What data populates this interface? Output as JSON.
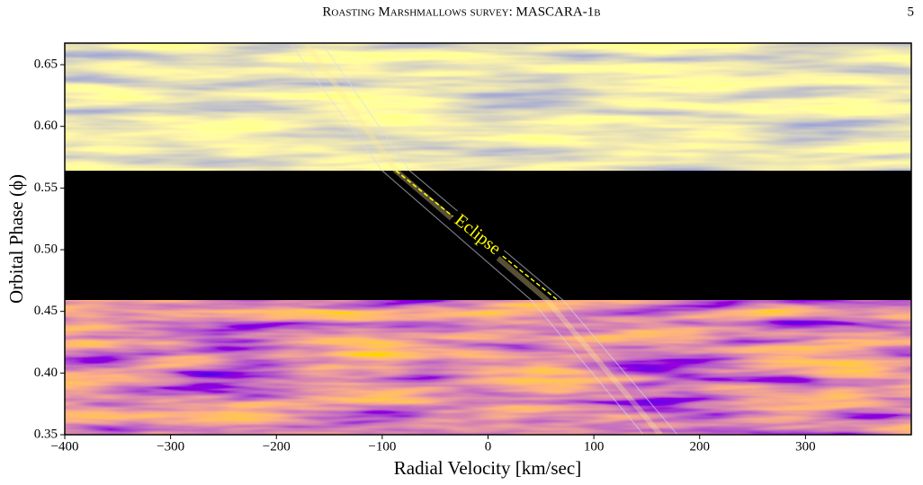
{
  "header": {
    "running_title": "Roasting Marshmallows survey: MASCARA-1b",
    "page_number": "5"
  },
  "chart_data": {
    "type": "phase-map",
    "xlabel": "Radial Velocity [km/sec]",
    "ylabel": "Orbital Phase (ϕ)",
    "xlim": [
      -400,
      400
    ],
    "ylim": [
      0.35,
      0.6675
    ],
    "xticks": [
      {
        "value": -400,
        "label": "−400"
      },
      {
        "value": -300,
        "label": "−300"
      },
      {
        "value": -200,
        "label": "−200"
      },
      {
        "value": -100,
        "label": "−100"
      },
      0,
      100,
      200,
      300
    ],
    "yticks": [
      0.35,
      {
        "value": 0.4,
        "label": "0.40"
      },
      0.45,
      {
        "value": 0.5,
        "label": "0.50"
      },
      0.55,
      {
        "value": 0.6,
        "label": "0.60"
      },
      0.65
    ],
    "eclipse": [
      0.459,
      0.564
    ],
    "annotation": "Eclipse",
    "annotation_color": "#ffff00",
    "eclipse_line_x": [
      -87,
      66
    ],
    "eclipse_line_y": [
      0.564,
      0.459
    ],
    "guide_y": [
      0.6675,
      0.564,
      0.459,
      0.35
    ],
    "guide_left_x": [
      -187,
      -100,
      41,
      147
    ],
    "guide_right_x": [
      -157,
      -74,
      71,
      179
    ],
    "guide_color": "#d8d8f0"
  }
}
